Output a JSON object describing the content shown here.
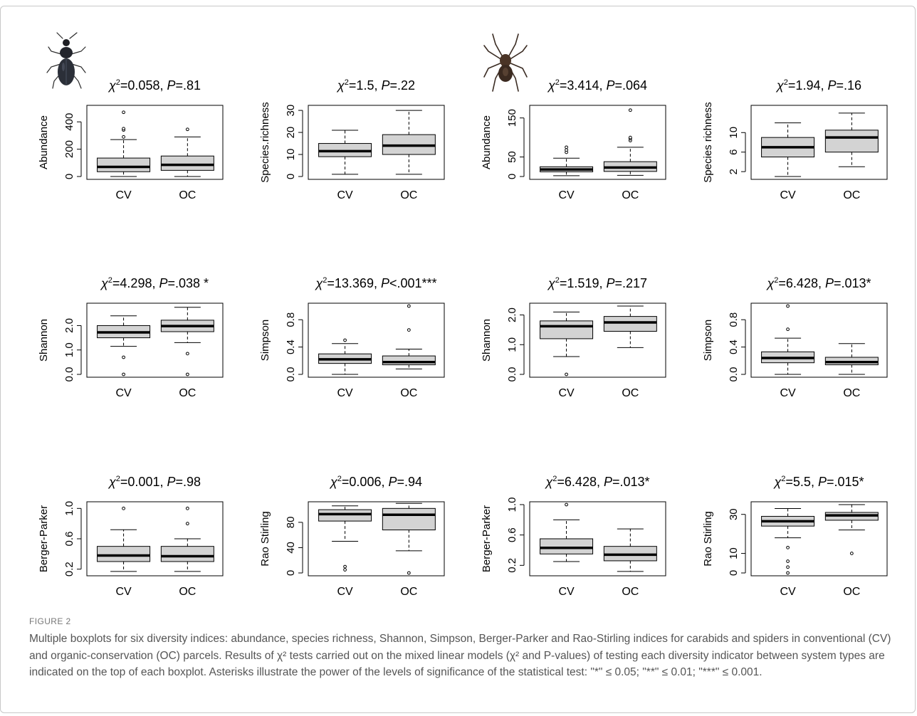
{
  "figure": {
    "label": "FIGURE 2",
    "caption": "Multiple boxplots for six diversity indices: abundance, species richness, Shannon, Simpson, Berger-Parker and Rao-Stirling indices for carabids and spiders in conventional (CV) and organic-conservation (OC) parcels. Results of χ² tests carried out on the mixed linear models (χ² and P-values) of testing each diversity indicator between system types are indicated on the top of each boxplot. Asterisks illustrate the power of the levels of significance of the statistical test: \"*\" ≤ 0.05; \"**\" ≤ 0.01; \"***\" ≤ 0.001.",
    "icons": {
      "carabid": "beetle-icon",
      "spider": "spider-icon"
    },
    "colors": {
      "box_fill": "#d3d3d3",
      "stroke": "#000000"
    }
  },
  "chart_data": [
    {
      "type": "boxplot",
      "group": "carabids",
      "title_stat": "=0.058, ",
      "title_p": "=.81",
      "ylabel": "Abundance",
      "ylim": [
        0,
        500
      ],
      "yticks": [
        0,
        200,
        400
      ],
      "categories": [
        "CV",
        "OC"
      ],
      "boxes": [
        {
          "whislo": 0,
          "q1": 35,
          "med": 70,
          "q3": 135,
          "whishi": 270,
          "fliers": [
            290,
            340,
            350,
            470
          ]
        },
        {
          "whislo": 0,
          "q1": 45,
          "med": 85,
          "q3": 150,
          "whishi": 290,
          "fliers": [
            345
          ]
        }
      ]
    },
    {
      "type": "boxplot",
      "group": "carabids",
      "title_stat": "=1.5, ",
      "title_p": "=.22",
      "ylabel": "Species.richness",
      "ylim": [
        0,
        31
      ],
      "yticks": [
        0,
        10,
        20,
        30
      ],
      "categories": [
        "CV",
        "OC"
      ],
      "boxes": [
        {
          "whislo": 1,
          "q1": 9,
          "med": 11.5,
          "q3": 15,
          "whishi": 21,
          "fliers": []
        },
        {
          "whislo": 1,
          "q1": 10,
          "med": 14,
          "q3": 19,
          "whishi": 30,
          "fliers": []
        }
      ]
    },
    {
      "type": "boxplot",
      "group": "spiders",
      "title_stat": "=3.414, ",
      "title_p": "=.064",
      "ylabel": "Abundance",
      "ylim": [
        0,
        175
      ],
      "yticks": [
        0,
        50,
        150
      ],
      "categories": [
        "CV",
        "OC"
      ],
      "boxes": [
        {
          "whislo": 2,
          "q1": 12,
          "med": 18,
          "q3": 25,
          "whishi": 47,
          "fliers": [
            62,
            68,
            75
          ]
        },
        {
          "whislo": 3,
          "q1": 13,
          "med": 23,
          "q3": 38,
          "whishi": 75,
          "fliers": [
            92,
            97,
            100,
            170
          ]
        }
      ]
    },
    {
      "type": "boxplot",
      "group": "spiders",
      "title_stat": "=1.94, ",
      "title_p": "=.16",
      "ylabel": "Species richness",
      "ylim": [
        1,
        15
      ],
      "yticks": [
        2,
        6,
        10
      ],
      "categories": [
        "CV",
        "OC"
      ],
      "boxes": [
        {
          "whislo": 1,
          "q1": 5,
          "med": 7,
          "q3": 9,
          "whishi": 12,
          "fliers": []
        },
        {
          "whislo": 3,
          "q1": 6,
          "med": 9,
          "q3": 10.5,
          "whishi": 14,
          "fliers": []
        }
      ]
    },
    {
      "type": "boxplot",
      "group": "carabids",
      "title_stat": "=4.298, ",
      "title_p": "=.038 *",
      "ylabel": "Shannon",
      "ylim": [
        0,
        2.8
      ],
      "yticks": [
        0.0,
        1.0,
        2.0
      ],
      "tick_labels": [
        "0.0",
        "1.0",
        "2.0"
      ],
      "categories": [
        "CV",
        "OC"
      ],
      "boxes": [
        {
          "whislo": 1.15,
          "q1": 1.5,
          "med": 1.72,
          "q3": 2.0,
          "whishi": 2.4,
          "fliers": [
            0.7,
            0.0
          ]
        },
        {
          "whislo": 1.3,
          "q1": 1.75,
          "med": 1.98,
          "q3": 2.22,
          "whishi": 2.75,
          "fliers": [
            0.85,
            0.0
          ]
        }
      ]
    },
    {
      "type": "boxplot",
      "group": "carabids",
      "title_stat": "=13.369, ",
      "title_p": "<.001***",
      "ylabel": "Simpson",
      "ylim": [
        0,
        1.0
      ],
      "yticks": [
        0.0,
        0.4,
        0.8
      ],
      "tick_labels": [
        "0.0",
        "0.4",
        "0.8"
      ],
      "categories": [
        "CV",
        "OC"
      ],
      "boxes": [
        {
          "whislo": 0.0,
          "q1": 0.16,
          "med": 0.22,
          "q3": 0.3,
          "whishi": 0.45,
          "fliers": [
            0.5
          ]
        },
        {
          "whislo": 0.08,
          "q1": 0.14,
          "med": 0.18,
          "q3": 0.27,
          "whishi": 0.37,
          "fliers": [
            0.65,
            1.0
          ]
        }
      ]
    },
    {
      "type": "boxplot",
      "group": "spiders",
      "title_stat": "=1.519, ",
      "title_p": "=.217",
      "ylabel": "Shannon",
      "ylim": [
        0,
        2.3
      ],
      "yticks": [
        0.0,
        1.0,
        2.0
      ],
      "tick_labels": [
        "0.0",
        "1.0",
        "2.0"
      ],
      "categories": [
        "CV",
        "OC"
      ],
      "boxes": [
        {
          "whislo": 0.6,
          "q1": 1.2,
          "med": 1.62,
          "q3": 1.8,
          "whishi": 2.1,
          "fliers": [
            0.0
          ]
        },
        {
          "whislo": 0.9,
          "q1": 1.45,
          "med": 1.75,
          "q3": 1.95,
          "whishi": 2.3,
          "fliers": []
        }
      ]
    },
    {
      "type": "boxplot",
      "group": "spiders",
      "title_stat": "=6.428, ",
      "title_p": "=.013*",
      "ylabel": "Simpson",
      "ylim": [
        0,
        1.0
      ],
      "yticks": [
        0.0,
        0.4,
        0.8
      ],
      "tick_labels": [
        "0.0",
        "0.4",
        "0.8"
      ],
      "categories": [
        "CV",
        "OC"
      ],
      "boxes": [
        {
          "whislo": 0.0,
          "q1": 0.17,
          "med": 0.24,
          "q3": 0.33,
          "whishi": 0.53,
          "fliers": [
            0.66,
            1.0
          ]
        },
        {
          "whislo": 0.0,
          "q1": 0.14,
          "med": 0.18,
          "q3": 0.25,
          "whishi": 0.45,
          "fliers": []
        }
      ]
    },
    {
      "type": "boxplot",
      "group": "carabids",
      "title_stat": "=0.001, ",
      "title_p": "=.98",
      "ylabel": "Berger-Parker",
      "ylim": [
        0.15,
        1.05
      ],
      "yticks": [
        0.2,
        0.6,
        1.0
      ],
      "tick_labels": [
        "0.2",
        "0.6",
        "1.0"
      ],
      "categories": [
        "CV",
        "OC"
      ],
      "boxes": [
        {
          "whislo": 0.17,
          "q1": 0.3,
          "med": 0.38,
          "q3": 0.5,
          "whishi": 0.72,
          "fliers": [
            1.0
          ]
        },
        {
          "whislo": 0.17,
          "q1": 0.3,
          "med": 0.37,
          "q3": 0.5,
          "whishi": 0.6,
          "fliers": [
            0.8,
            1.0
          ]
        }
      ]
    },
    {
      "type": "boxplot",
      "group": "carabids",
      "title_stat": "=0.006, ",
      "title_p": "=.94",
      "ylabel": "Rao Stirling",
      "ylim": [
        0,
        108
      ],
      "yticks": [
        0,
        40,
        80
      ],
      "categories": [
        "CV",
        "OC"
      ],
      "boxes": [
        {
          "whislo": 50,
          "q1": 82,
          "med": 93,
          "q3": 100,
          "whishi": 106,
          "fliers": [
            5,
            10
          ]
        },
        {
          "whislo": 35,
          "q1": 68,
          "med": 92,
          "q3": 102,
          "whishi": 110,
          "fliers": [
            0
          ]
        }
      ]
    },
    {
      "type": "boxplot",
      "group": "spiders",
      "title_stat": "=6.428, ",
      "title_p": "=.013*",
      "ylabel": "Berger-Parker",
      "ylim": [
        0.1,
        1.0
      ],
      "yticks": [
        0.2,
        0.6,
        1.0
      ],
      "tick_labels": [
        "0.2",
        "0.6",
        "1.0"
      ],
      "categories": [
        "CV",
        "OC"
      ],
      "boxes": [
        {
          "whislo": 0.25,
          "q1": 0.35,
          "med": 0.43,
          "q3": 0.55,
          "whishi": 0.8,
          "fliers": [
            1.0
          ]
        },
        {
          "whislo": 0.12,
          "q1": 0.26,
          "med": 0.34,
          "q3": 0.45,
          "whishi": 0.68,
          "fliers": []
        }
      ]
    },
    {
      "type": "boxplot",
      "group": "spiders",
      "title_stat": "=5.5, ",
      "title_p": "=.015*",
      "ylabel": "Rao Stirling",
      "ylim": [
        0,
        35
      ],
      "yticks": [
        0,
        10,
        30
      ],
      "categories": [
        "CV",
        "OC"
      ],
      "boxes": [
        {
          "whislo": 18,
          "q1": 24,
          "med": 26.5,
          "q3": 29,
          "whishi": 33,
          "fliers": [
            13,
            6,
            3,
            0
          ]
        },
        {
          "whislo": 22,
          "q1": 27,
          "med": 29.5,
          "q3": 31,
          "whishi": 35,
          "fliers": [
            10
          ]
        }
      ]
    }
  ]
}
